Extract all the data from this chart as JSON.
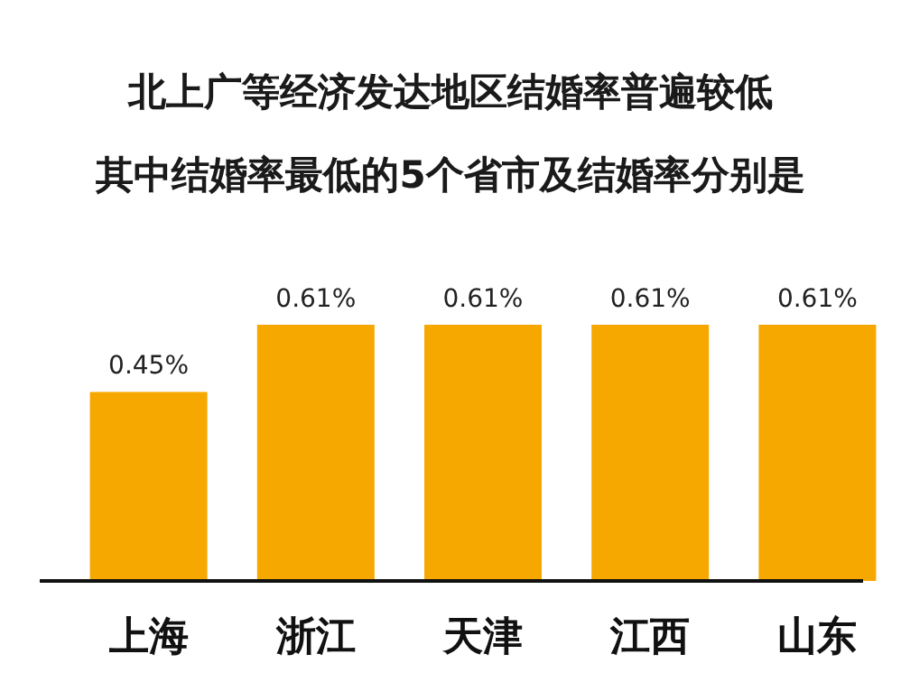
{
  "chart_data": {
    "type": "bar",
    "title": "北上广等经济发达地区结婚率普遍较低",
    "subtitle": "其中结婚率最低的5个省市及结婚率分别是",
    "categories": [
      "上海",
      "浙江",
      "天津",
      "江西",
      "山东"
    ],
    "values": [
      0.45,
      0.61,
      0.61,
      0.61,
      0.61
    ],
    "value_labels": [
      "0.45%",
      "0.61%",
      "0.61%",
      "0.61%",
      "0.61%"
    ],
    "color": "#f7a800"
  }
}
